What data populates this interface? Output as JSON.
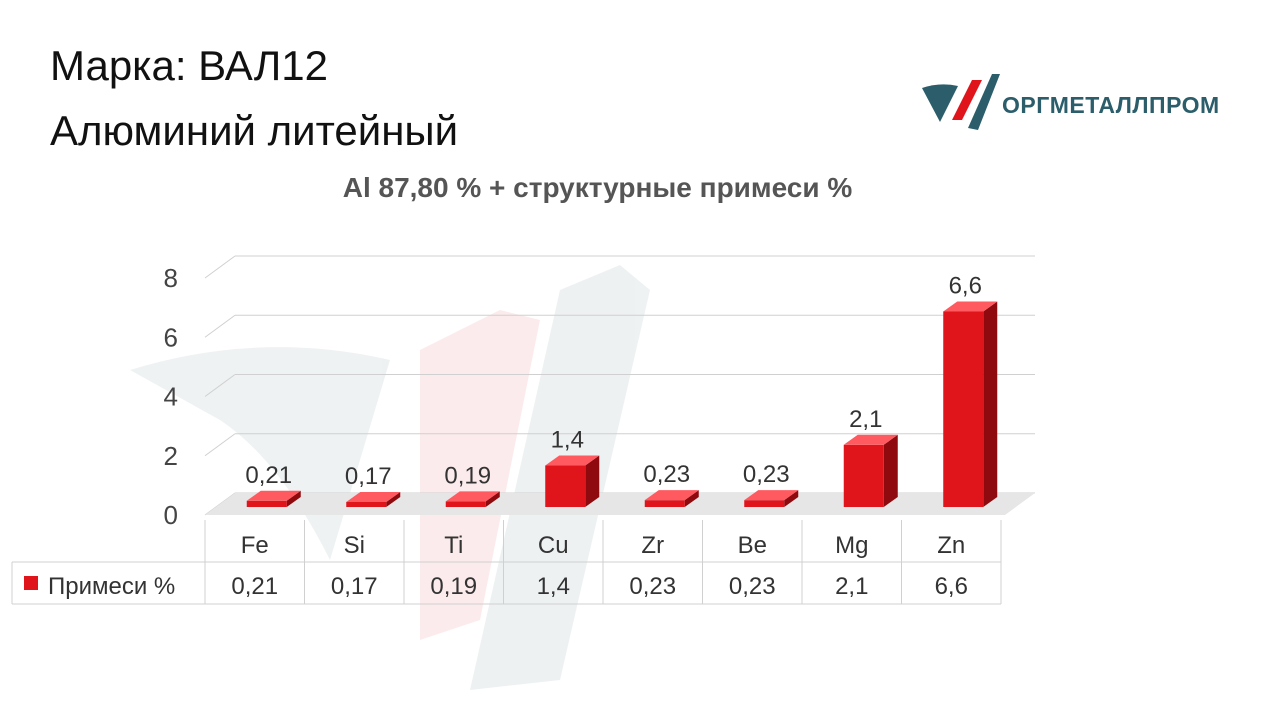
{
  "header": {
    "title_line1": "Марка: ВАЛ12",
    "title_line2": "Алюминий литейный"
  },
  "logo": {
    "text": "ОРГМЕТАЛЛПРОМ"
  },
  "chart_data": {
    "type": "bar",
    "title": "Al 87,80 % + структурные примеси %",
    "categories": [
      "Fe",
      "Si",
      "Ti",
      "Cu",
      "Zr",
      "Be",
      "Mg",
      "Zn"
    ],
    "series": [
      {
        "name": "Примеси %",
        "values": [
          0.21,
          0.17,
          0.19,
          1.4,
          0.23,
          0.23,
          2.1,
          6.6
        ],
        "labels": [
          "0,21",
          "0,17",
          "0,19",
          "1,4",
          "0,23",
          "0,23",
          "2,1",
          "6,6"
        ]
      }
    ],
    "ylim": [
      0,
      8
    ],
    "yticks": [
      "0",
      "2",
      "4",
      "6",
      "8"
    ],
    "grid": true,
    "legend_position": "left of data table",
    "bar_color": "#e0141b"
  }
}
